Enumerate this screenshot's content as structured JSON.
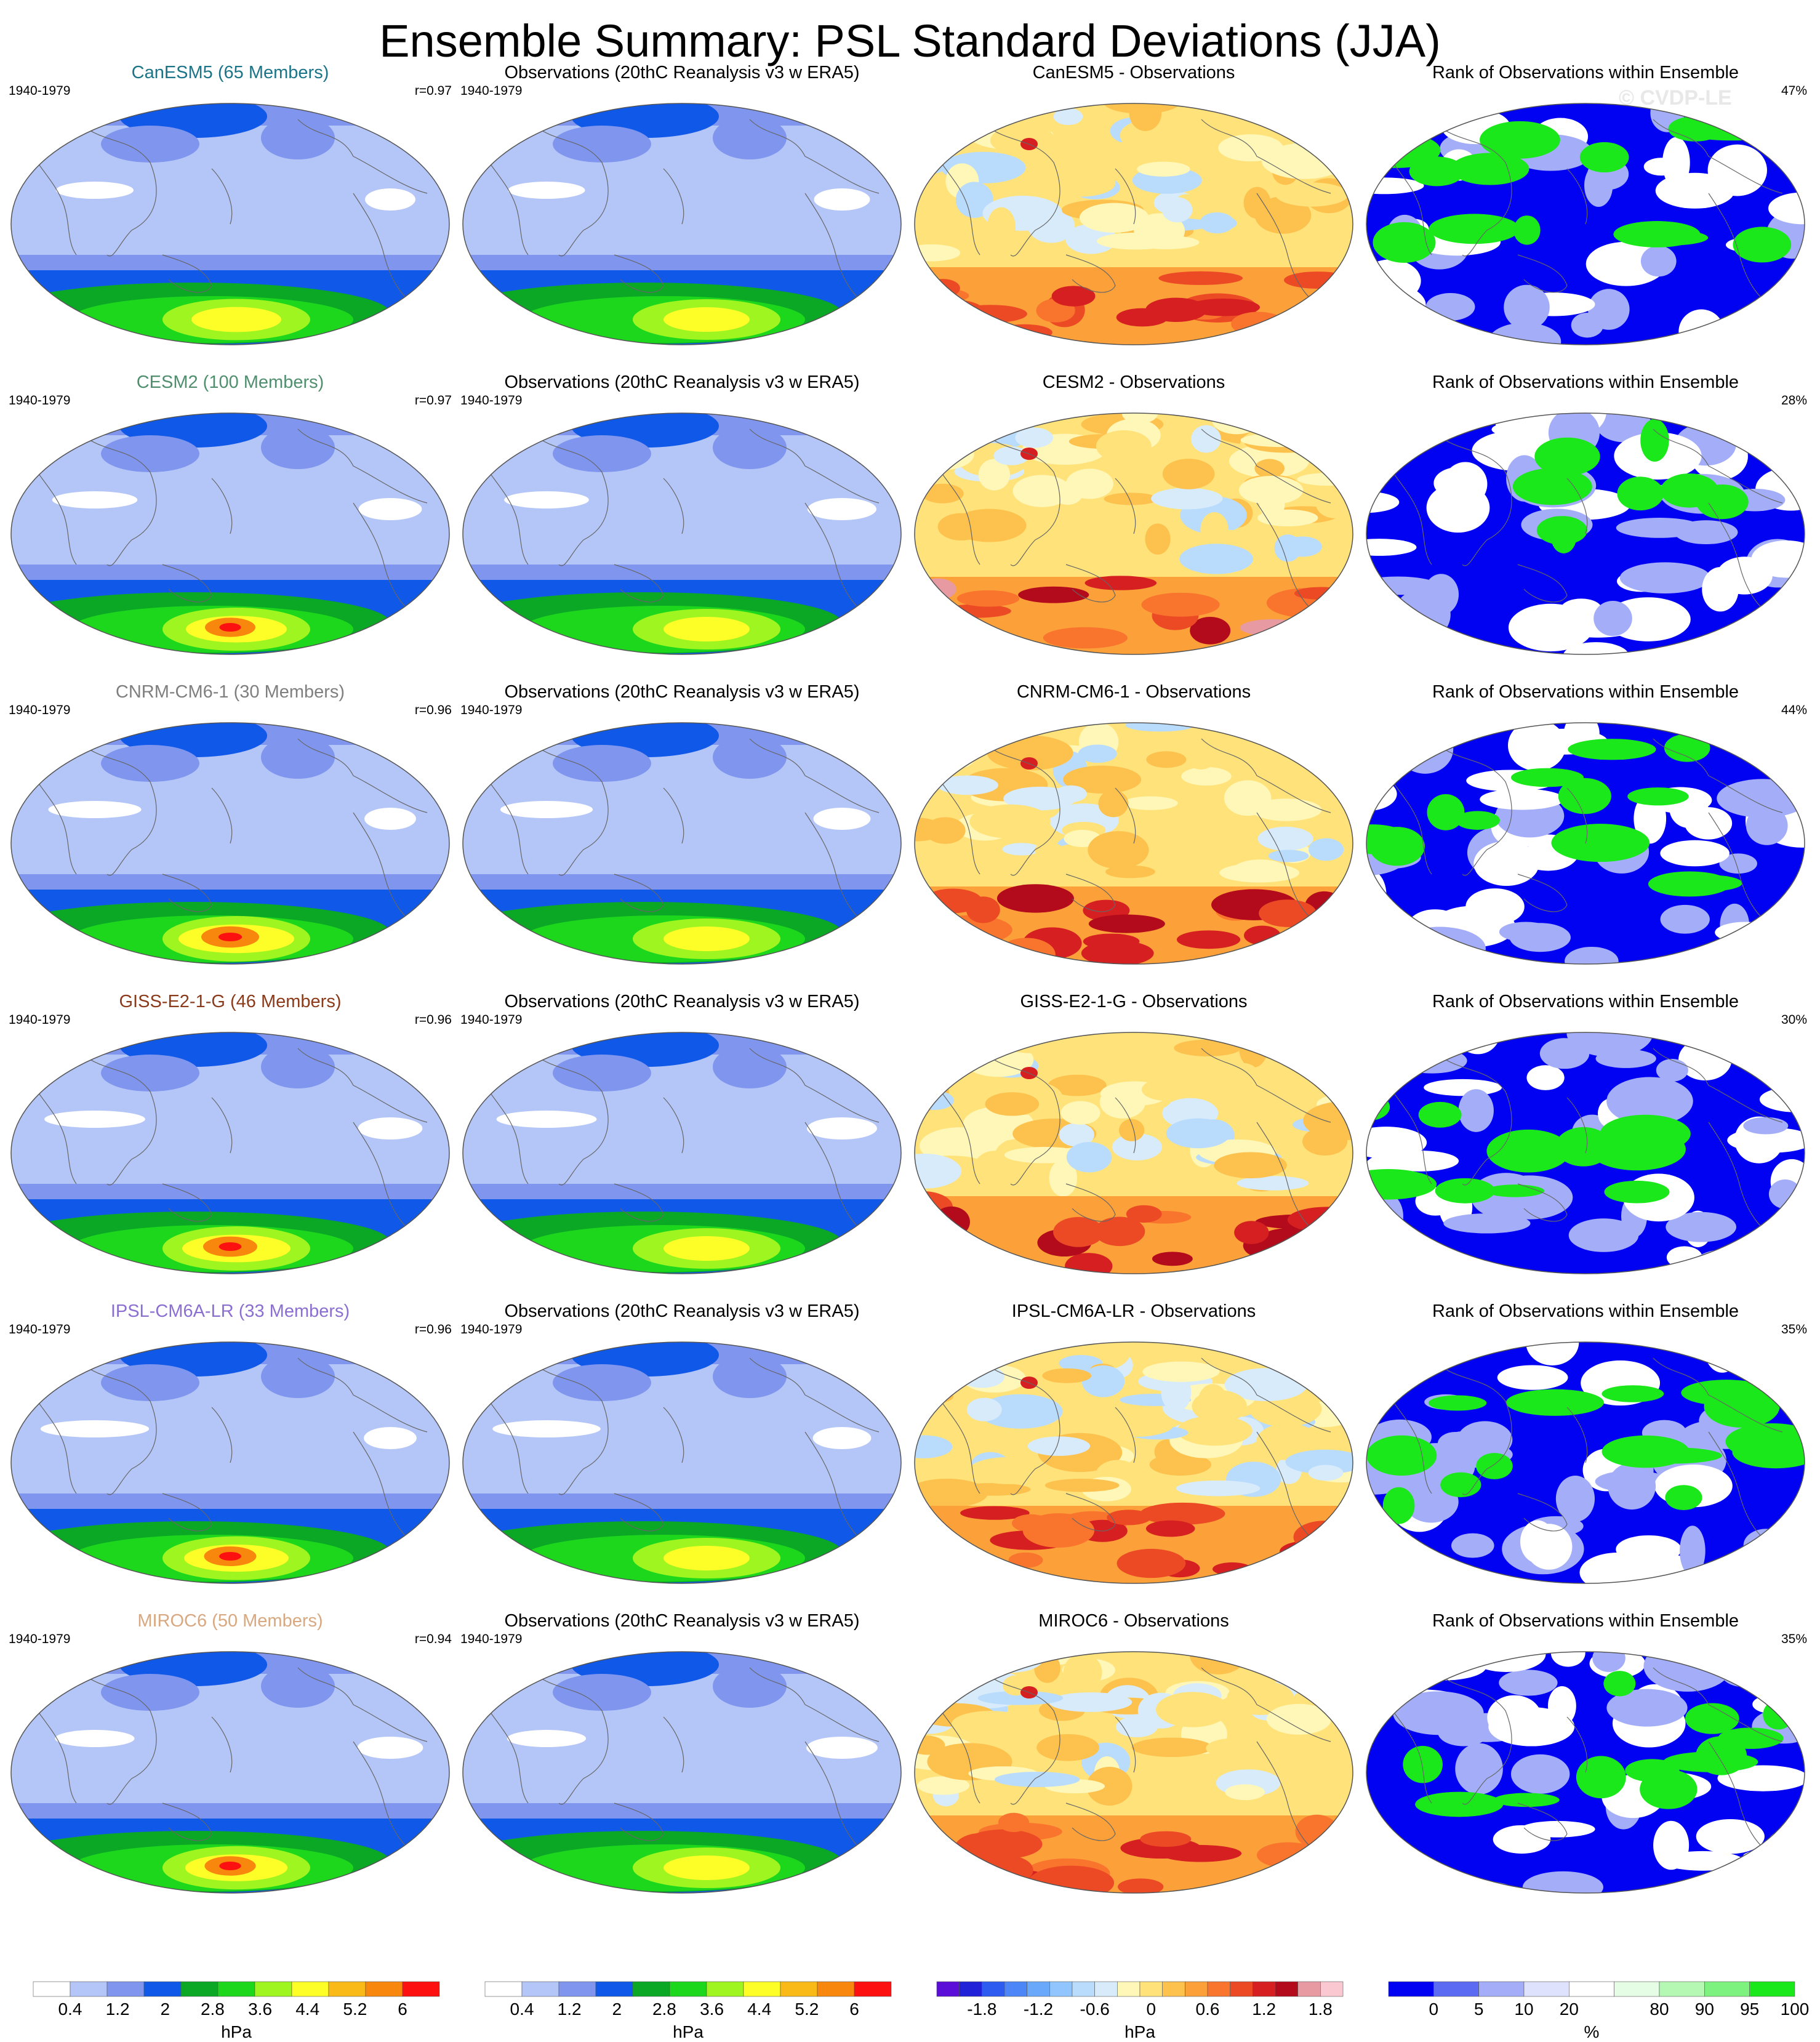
{
  "title": "Ensemble Summary: PSL Standard Deviations (JJA)",
  "watermark": "© CVDP-LE",
  "obs_title": "Observations (20thC Reanalysis v3 w ERA5)",
  "rank_title": "Rank of Observations within Ensemble",
  "years": "1940-1979",
  "chart_data": [
    {
      "type": "heatmap",
      "row": 0,
      "model": "CanESM5",
      "title": "CanESM5 (65 Members)",
      "title_color": "#1b7488",
      "pattern_r": "r=0.97",
      "diff_title": "CanESM5 - Observations",
      "rank_percent": "47%",
      "storm_strength": 0.55,
      "diff_bias": 0.35,
      "green_fraction": 0.45
    },
    {
      "type": "heatmap",
      "row": 1,
      "model": "CESM2",
      "title": "CESM2 (100 Members)",
      "title_color": "#4f8f6e",
      "pattern_r": "r=0.97",
      "diff_title": "CESM2 - Observations",
      "rank_percent": "28%",
      "storm_strength": 0.7,
      "diff_bias": 0.75,
      "green_fraction": 0.2
    },
    {
      "type": "heatmap",
      "row": 2,
      "model": "CNRM-CM6-1",
      "title": "CNRM-CM6-1 (30 Members)",
      "title_color": "#7f7f7f",
      "pattern_r": "r=0.96",
      "diff_title": "CNRM-CM6-1 - Observations",
      "rank_percent": "44%",
      "storm_strength": 0.9,
      "diff_bias": 0.5,
      "green_fraction": 0.4
    },
    {
      "type": "heatmap",
      "row": 3,
      "model": "GISS-E2-1-G",
      "title": "GISS-E2-1-G (46 Members)",
      "title_color": "#8b3a1a",
      "pattern_r": "r=0.96",
      "diff_title": "GISS-E2-1-G - Observations",
      "rank_percent": "30%",
      "storm_strength": 0.8,
      "diff_bias": 0.7,
      "green_fraction": 0.25
    },
    {
      "type": "heatmap",
      "row": 4,
      "model": "IPSL-CM6A-LR",
      "title": "IPSL-CM6A-LR (33 Members)",
      "title_color": "#8b6fd0",
      "pattern_r": "r=0.96",
      "diff_title": "IPSL-CM6A-LR - Observations",
      "rank_percent": "35%",
      "storm_strength": 0.75,
      "diff_bias": 0.4,
      "green_fraction": 0.5
    },
    {
      "type": "heatmap",
      "row": 5,
      "model": "MIROC6",
      "title": "MIROC6 (50 Members)",
      "title_color": "#d8a880",
      "pattern_r": "r=0.94",
      "diff_title": "MIROC6 - Observations",
      "rank_percent": "35%",
      "storm_strength": 0.72,
      "diff_bias": 0.3,
      "green_fraction": 0.35
    }
  ],
  "colorbars": [
    {
      "name": "model-std",
      "unit": "hPa",
      "colors": [
        "#ffffff",
        "#b4c5f8",
        "#7f95ee",
        "#0f58e8",
        "#0ba826",
        "#1dd71d",
        "#9ef51f",
        "#fdfd27",
        "#f9b917",
        "#f7880d",
        "#fd1010"
      ],
      "ticks": [
        "0.4",
        "1.2",
        "2",
        "2.8",
        "3.6",
        "4.4",
        "5.2",
        "6"
      ]
    },
    {
      "name": "obs-std",
      "unit": "hPa",
      "colors": [
        "#ffffff",
        "#b4c5f8",
        "#7f95ee",
        "#0f58e8",
        "#0ba826",
        "#1dd71d",
        "#9ef51f",
        "#fdfd27",
        "#f9b917",
        "#f7880d",
        "#fd1010"
      ],
      "ticks": [
        "0.4",
        "1.2",
        "2",
        "2.8",
        "3.6",
        "4.4",
        "5.2",
        "6"
      ]
    },
    {
      "name": "difference",
      "unit": "hPa",
      "colors": [
        "#5a0ed8",
        "#2121d8",
        "#2e5cf1",
        "#4d86f7",
        "#6aa8fb",
        "#90c6fd",
        "#b9dcfd",
        "#d7ebfb",
        "#fff7b8",
        "#ffe27a",
        "#fdc14e",
        "#fca03a",
        "#f9742d",
        "#ec4a25",
        "#d61f21",
        "#b40b1c",
        "#e89aa3",
        "#f9c8d0"
      ],
      "ticks": [
        "-1.8",
        "-1.2",
        "-0.6",
        "0",
        "0.6",
        "1.2",
        "1.8"
      ]
    },
    {
      "name": "rank",
      "unit": "%",
      "colors": [
        "#0202f2",
        "#5b6cf2",
        "#a4aef8",
        "#dfe2fc",
        "#ffffff",
        "#e4fde4",
        "#b4f8b4",
        "#7ef27e",
        "#1ae81a"
      ],
      "ticks": [
        "0",
        "5",
        "10",
        "20",
        "80",
        "90",
        "95",
        "100"
      ]
    }
  ]
}
